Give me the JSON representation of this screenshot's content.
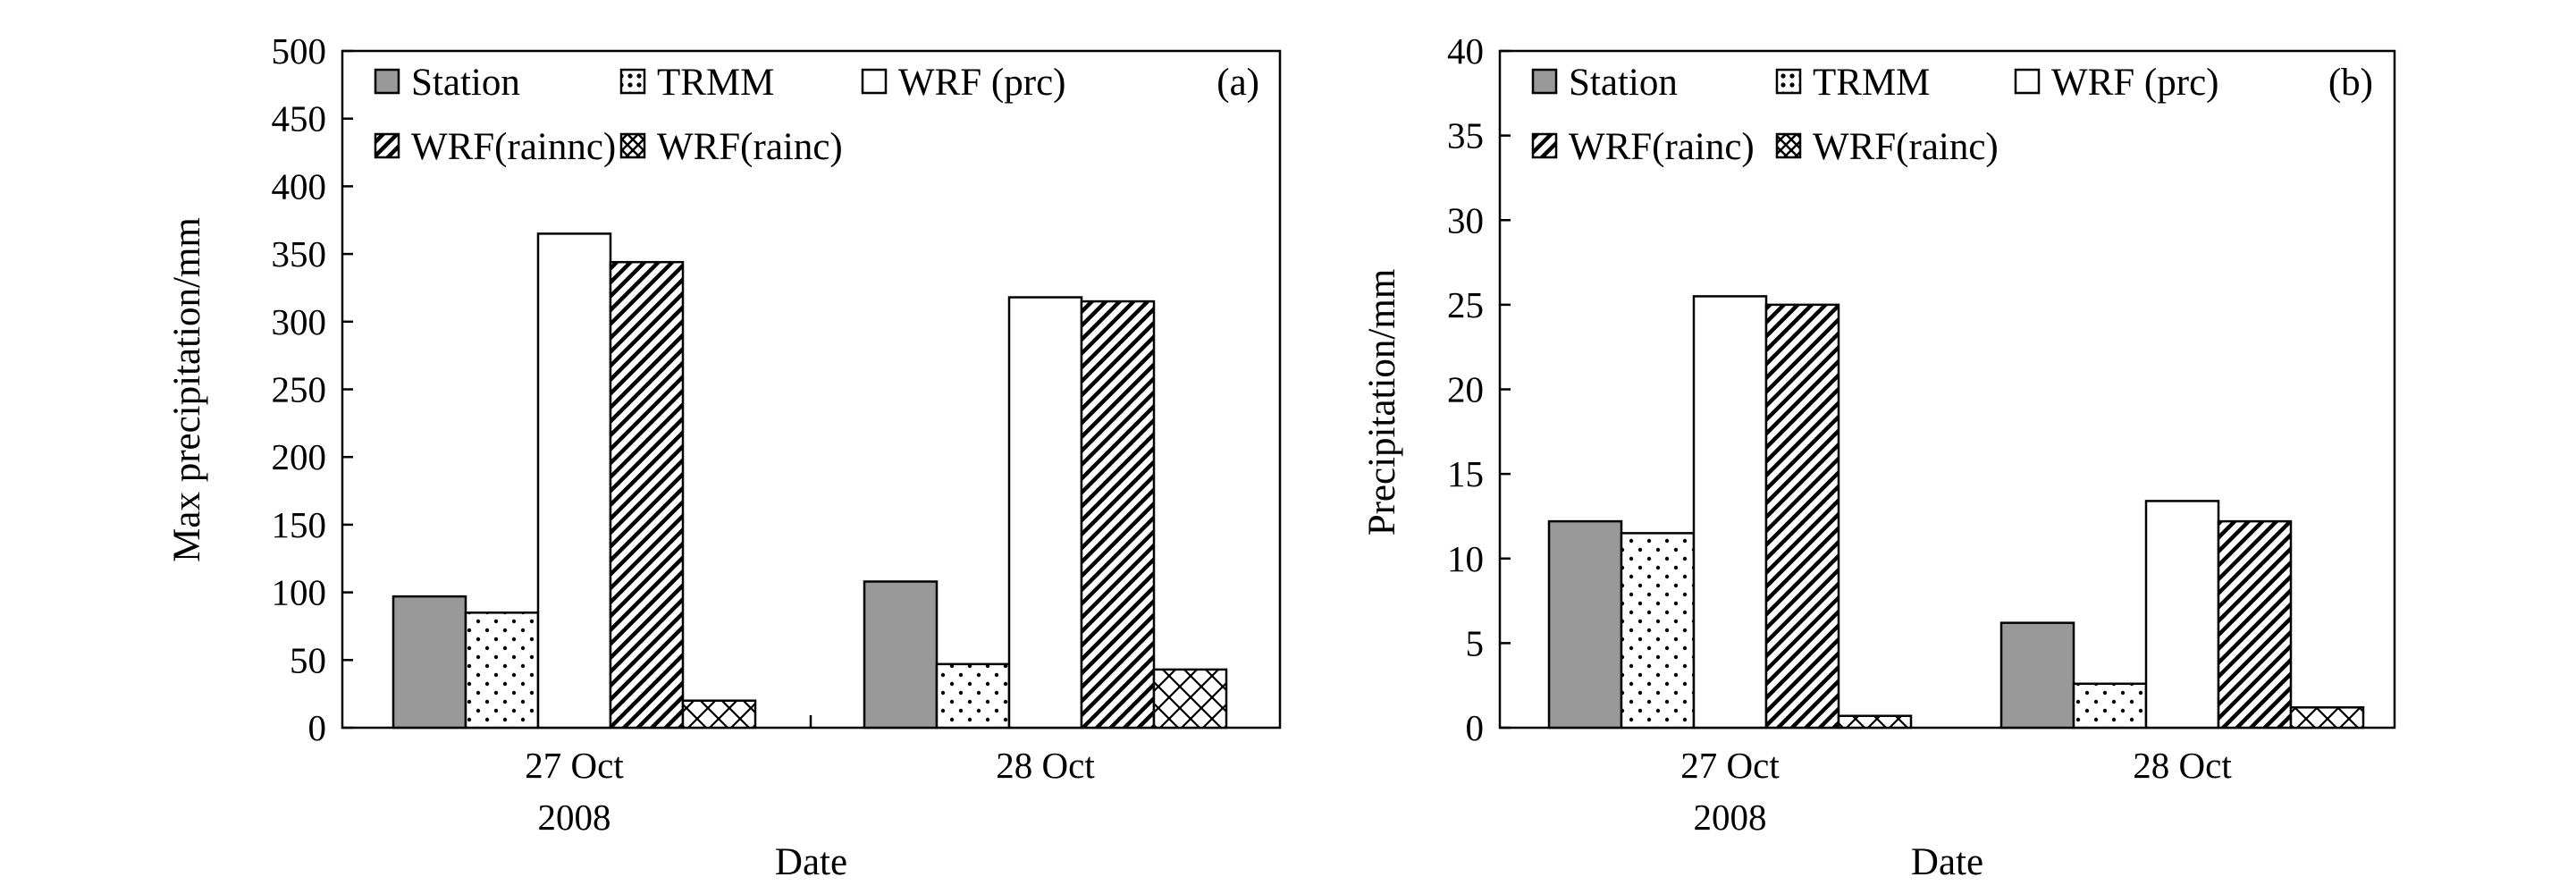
{
  "colors": {
    "station": "#999999",
    "outline": "#000000",
    "background": "#ffffff"
  },
  "chart_data": [
    {
      "type": "bar",
      "panel_label": "(a)",
      "categories": [
        "27 Oct",
        "28 Oct"
      ],
      "category_sublabels": [
        "2008",
        ""
      ],
      "xlabel": "Date",
      "ylabel": "Max precipitation/mm",
      "ylim": [
        0,
        500
      ],
      "yticks": [
        0,
        50,
        100,
        150,
        200,
        250,
        300,
        350,
        400,
        450,
        500
      ],
      "grid": false,
      "legend_position": "top",
      "series": [
        {
          "name": "Station",
          "pattern": "solid-gray",
          "values": [
            97,
            108
          ]
        },
        {
          "name": "TRMM",
          "pattern": "dots",
          "values": [
            85,
            47
          ]
        },
        {
          "name": "WRF (prc)",
          "pattern": "white",
          "values": [
            365,
            318
          ]
        },
        {
          "name": "WRF(rainnc)",
          "pattern": "diagonal",
          "values": [
            344,
            315
          ]
        },
        {
          "name": "WRF(rainc)",
          "pattern": "crosshatch",
          "values": [
            20,
            43
          ]
        }
      ]
    },
    {
      "type": "bar",
      "panel_label": "(b)",
      "categories": [
        "27 Oct",
        "28 Oct"
      ],
      "category_sublabels": [
        "2008",
        ""
      ],
      "xlabel": "Date",
      "ylabel": "Precipitation/mm",
      "ylim": [
        0,
        40
      ],
      "yticks": [
        0,
        5,
        10,
        15,
        20,
        25,
        30,
        35,
        40
      ],
      "grid": false,
      "legend_position": "top",
      "series": [
        {
          "name": "Station",
          "pattern": "solid-gray",
          "values": [
            12.2,
            6.2
          ]
        },
        {
          "name": "TRMM",
          "pattern": "dots",
          "values": [
            11.5,
            2.6
          ]
        },
        {
          "name": "WRF (prc)",
          "pattern": "white",
          "values": [
            25.5,
            13.4
          ]
        },
        {
          "name": "WRF(rainc)",
          "pattern": "diagonal",
          "values": [
            25.0,
            12.2
          ]
        },
        {
          "name": "WRF(rainc)",
          "pattern": "crosshatch",
          "values": [
            0.7,
            1.2
          ]
        }
      ]
    }
  ]
}
